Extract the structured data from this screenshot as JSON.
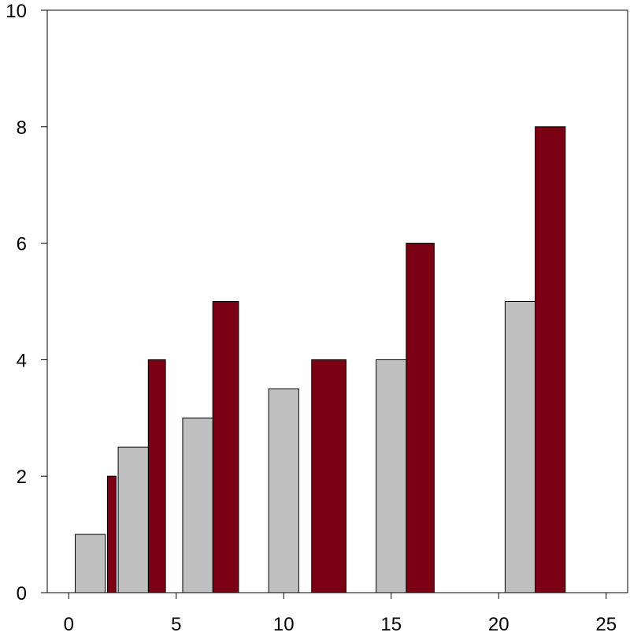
{
  "chart_data": {
    "type": "bar",
    "title": "",
    "xlabel": "",
    "ylabel": "",
    "xlim": [
      -1,
      26
    ],
    "ylim": [
      0,
      10
    ],
    "x_ticks": [
      0,
      5,
      10,
      15,
      20,
      25
    ],
    "y_ticks": [
      0,
      2,
      4,
      6,
      8,
      10
    ],
    "x_tick_labels": [
      "0",
      "5",
      "10",
      "15",
      "20",
      "25"
    ],
    "y_tick_labels": [
      "0",
      "2",
      "4",
      "6",
      "8",
      "10"
    ],
    "grid": false,
    "legend": "none",
    "series": [
      {
        "color": "#c0c0c0",
        "bars": [
          {
            "x_start": 0.3,
            "x_end": 1.7,
            "value": 1
          },
          {
            "x_start": 2.3,
            "x_end": 3.7,
            "value": 2.5
          },
          {
            "x_start": 5.3,
            "x_end": 6.7,
            "value": 3
          },
          {
            "x_start": 9.3,
            "x_end": 10.7,
            "value": 3.5
          },
          {
            "x_start": 14.3,
            "x_end": 15.7,
            "value": 4
          },
          {
            "x_start": 20.3,
            "x_end": 21.7,
            "value": 5
          }
        ]
      },
      {
        "color": "#7b0014",
        "bars": [
          {
            "x_start": 1.8,
            "x_end": 2.2,
            "value": 2
          },
          {
            "x_start": 3.7,
            "x_end": 4.5,
            "value": 4
          },
          {
            "x_start": 6.7,
            "x_end": 7.9,
            "value": 5
          },
          {
            "x_start": 11.3,
            "x_end": 12.9,
            "value": 4
          },
          {
            "x_start": 15.7,
            "x_end": 17.0,
            "value": 6
          },
          {
            "x_start": 21.7,
            "x_end": 23.1,
            "value": 8
          }
        ]
      }
    ]
  }
}
